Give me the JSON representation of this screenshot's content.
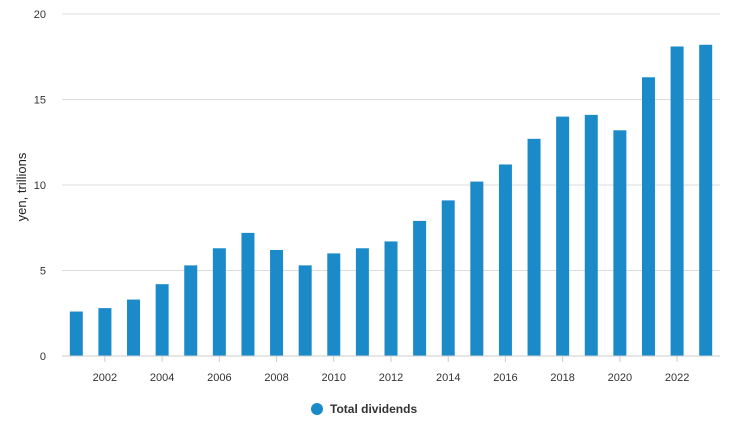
{
  "chart_data": {
    "type": "bar",
    "categories": [
      "2001",
      "2002",
      "2003",
      "2004",
      "2005",
      "2006",
      "2007",
      "2008",
      "2009",
      "2010",
      "2011",
      "2012",
      "2013",
      "2014",
      "2015",
      "2016",
      "2017",
      "2018",
      "2019",
      "2020",
      "2021",
      "2022",
      "2023"
    ],
    "series": [
      {
        "name": "Total dividends",
        "color": "#1a8bc8",
        "values": [
          2.6,
          2.8,
          3.3,
          4.2,
          5.3,
          6.3,
          7.2,
          6.2,
          5.3,
          6.0,
          6.3,
          6.7,
          7.9,
          9.1,
          10.2,
          11.2,
          12.7,
          14.0,
          14.1,
          13.2,
          16.3,
          18.1,
          18.2
        ]
      }
    ],
    "ylabel": "yen, trillions",
    "ylim": [
      0,
      20
    ],
    "yticks": [
      "0",
      "5",
      "10",
      "15",
      "20"
    ],
    "xtick_labels": [
      "2002",
      "2004",
      "2006",
      "2008",
      "2010",
      "2012",
      "2014",
      "2016",
      "2018",
      "2020",
      "2022"
    ],
    "grid": true,
    "legend_position": "bottom-center"
  }
}
